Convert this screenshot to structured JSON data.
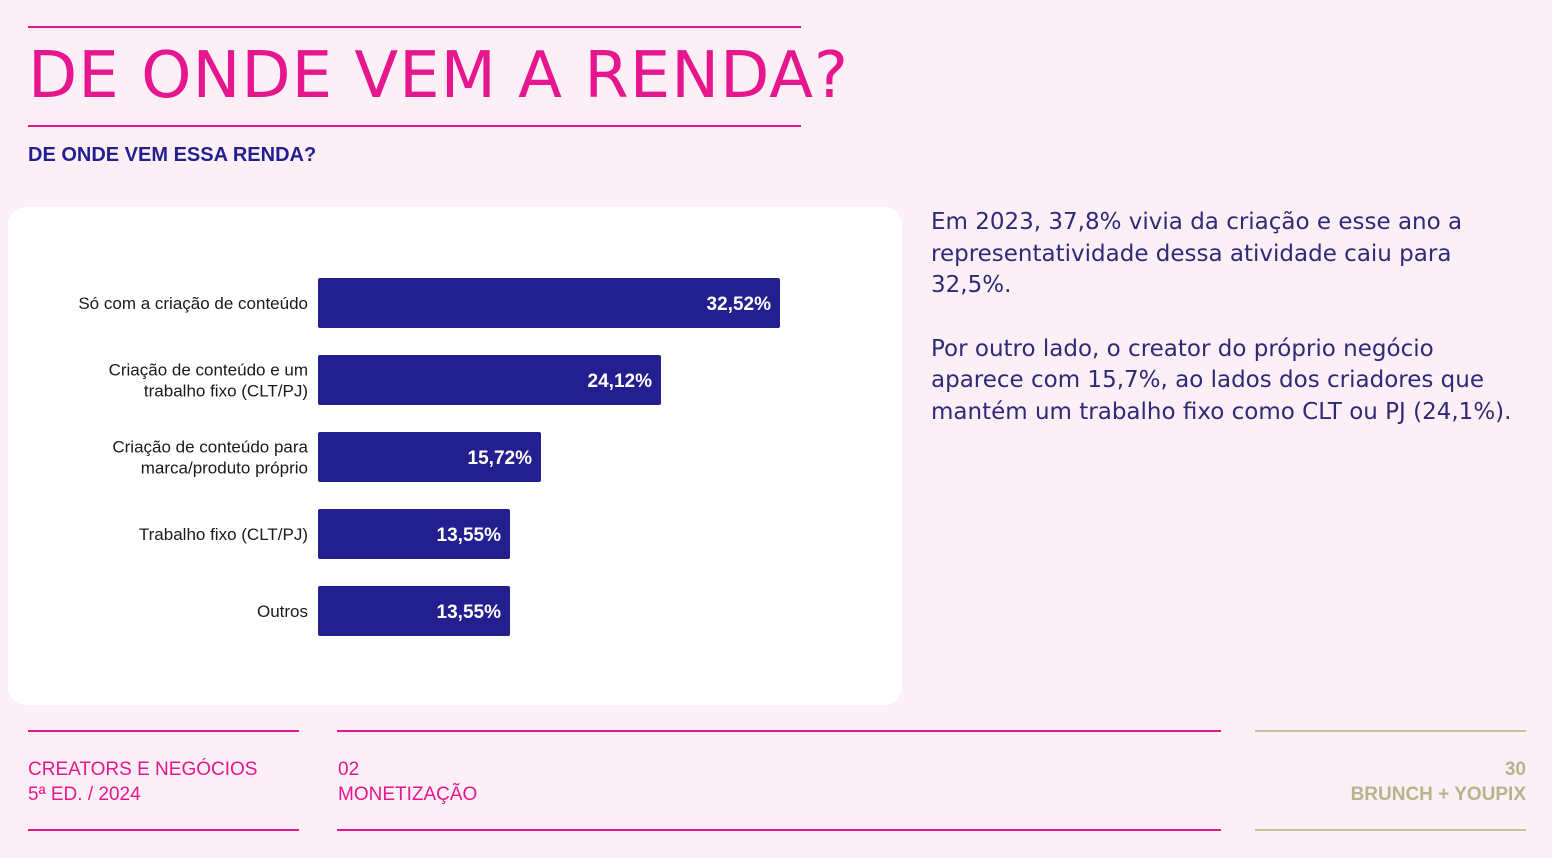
{
  "header": {
    "title": "DE ONDE VEM A RENDA?",
    "subtitle": "DE ONDE VEM ESSA RENDA?"
  },
  "colors": {
    "accent": "#e6168f",
    "bar": "#241f8f",
    "text": "#2e2a78",
    "gold": "#b8b48a",
    "background": "#fcf0f6"
  },
  "chart_data": {
    "type": "bar",
    "orientation": "horizontal",
    "categories": [
      [
        "Só com a criação de conteúdo"
      ],
      [
        "Criação de conteúdo e um",
        "trabalho fixo (CLT/PJ)"
      ],
      [
        "Criação de conteúdo para",
        "marca/produto próprio"
      ],
      [
        "Trabalho fixo (CLT/PJ)"
      ],
      [
        "Outros"
      ]
    ],
    "values": [
      32.52,
      24.12,
      15.72,
      13.55,
      13.55
    ],
    "value_labels": [
      "32,52%",
      "24,12%",
      "15,72%",
      "13,55%",
      "13,55%"
    ],
    "xlim": [
      0,
      32.52
    ],
    "title": "",
    "xlabel": "",
    "ylabel": "",
    "grid": false,
    "legend": "none"
  },
  "insights": {
    "paragraph_1": "Em 2023, 37,8% vivia da criação e esse ano a representatividade dessa atividade caiu para 32,5%.",
    "paragraph_2": "Por outro lado, o creator do próprio negócio aparece com 15,7%, ao lados dos criadores que mantém um trabalho fixo como CLT ou PJ (24,1%)."
  },
  "footer": {
    "publication_line1": "CREATORS E NEGÓCIOS",
    "publication_line2": "5ª ED. / 2024",
    "section_line1": "02",
    "section_line2": "MONETIZAÇÃO",
    "page_number": "30",
    "brand": "BRUNCH + YOUPIX"
  }
}
